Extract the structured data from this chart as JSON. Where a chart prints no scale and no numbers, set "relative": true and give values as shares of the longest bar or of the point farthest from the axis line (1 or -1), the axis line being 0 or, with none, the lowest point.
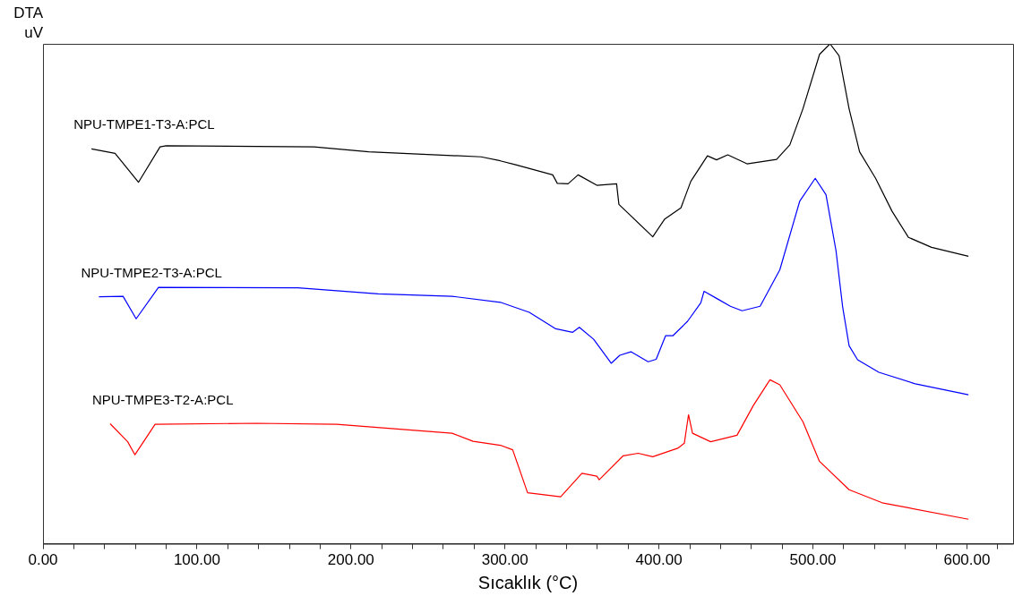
{
  "chart_data": {
    "type": "line",
    "xlabel": "Sıcaklık (°C)",
    "ylabel": "DTA\nuV",
    "relative": true,
    "legend": false,
    "marker": "none",
    "line_style": "solid",
    "xlim": [
      0,
      630
    ],
    "xticks": [
      {
        "value": 0,
        "label": "0.00"
      },
      {
        "value": 20,
        "label": null
      },
      {
        "value": 40,
        "label": null
      },
      {
        "value": 60,
        "label": null
      },
      {
        "value": 80,
        "label": null
      },
      {
        "value": 100,
        "label": "100.00"
      },
      {
        "value": 120,
        "label": null
      },
      {
        "value": 140,
        "label": null
      },
      {
        "value": 160,
        "label": null
      },
      {
        "value": 180,
        "label": null
      },
      {
        "value": 200,
        "label": "200.00"
      },
      {
        "value": 220,
        "label": null
      },
      {
        "value": 240,
        "label": null
      },
      {
        "value": 260,
        "label": null
      },
      {
        "value": 280,
        "label": null
      },
      {
        "value": 300,
        "label": "300.00"
      },
      {
        "value": 320,
        "label": null
      },
      {
        "value": 340,
        "label": null
      },
      {
        "value": 360,
        "label": null
      },
      {
        "value": 380,
        "label": null
      },
      {
        "value": 400,
        "label": "400.00"
      },
      {
        "value": 420,
        "label": null
      },
      {
        "value": 440,
        "label": null
      },
      {
        "value": 460,
        "label": null
      },
      {
        "value": 480,
        "label": null
      },
      {
        "value": 500,
        "label": "500.00"
      },
      {
        "value": 520,
        "label": null
      },
      {
        "value": 540,
        "label": null
      },
      {
        "value": 560,
        "label": null
      },
      {
        "value": 580,
        "label": null
      },
      {
        "value": 600,
        "label": "600.00"
      },
      {
        "value": 620,
        "label": null
      }
    ],
    "series": [
      {
        "name": "NPU-TMPE1-T3-A:PCL",
        "color": "#000000",
        "x": [
          31.5,
          46.8,
          62,
          76,
          80,
          176,
          211.5,
          284.5,
          297,
          307,
          331,
          334,
          341,
          347.5,
          359.7,
          372.5,
          374,
          396,
          403.6,
          414.3,
          420.7,
          431.5,
          437.4,
          444.7,
          457.2,
          476.4,
          485,
          493.5,
          504.3,
          511.1,
          517,
          523.5,
          530.3,
          540.7,
          551.4,
          562,
          577,
          601
        ],
        "values": [
          0.79,
          0.781,
          0.723,
          0.794,
          0.796,
          0.794,
          0.784,
          0.774,
          0.766,
          0.758,
          0.738,
          0.721,
          0.72,
          0.738,
          0.717,
          0.72,
          0.679,
          0.614,
          0.649,
          0.672,
          0.725,
          0.776,
          0.768,
          0.778,
          0.76,
          0.769,
          0.798,
          0.87,
          0.979,
          1.0,
          0.976,
          0.87,
          0.784,
          0.731,
          0.665,
          0.613,
          0.593,
          0.575
        ]
      },
      {
        "name": "NPU-TMPE2-T3-A:PCL",
        "color": "#0000ff",
        "x": [
          36.3,
          52,
          60.5,
          75,
          165.6,
          217.7,
          265.7,
          297,
          315.8,
          333,
          344,
          348.3,
          357.6,
          369,
          374.6,
          381.8,
          393,
          398.2,
          404.3,
          409,
          418.6,
          427.2,
          429.3,
          437.9,
          446.4,
          454,
          465.7,
          478.5,
          491.4,
          501.5,
          508.5,
          515,
          519.3,
          523.5,
          529,
          542.8,
          566.4,
          601
        ],
        "values": [
          0.494,
          0.495,
          0.45,
          0.513,
          0.512,
          0.5,
          0.495,
          0.483,
          0.463,
          0.43,
          0.423,
          0.433,
          0.409,
          0.361,
          0.377,
          0.384,
          0.364,
          0.369,
          0.416,
          0.416,
          0.445,
          0.482,
          0.505,
          0.49,
          0.475,
          0.466,
          0.475,
          0.548,
          0.685,
          0.731,
          0.698,
          0.586,
          0.474,
          0.396,
          0.368,
          0.343,
          0.32,
          0.298
        ]
      },
      {
        "name": "NPU-TMPE3-T2-A:PCL",
        "color": "#ff0000",
        "x": [
          43.6,
          55,
          59.7,
          72.8,
          138.5,
          190.7,
          265.7,
          279.3,
          297,
          305,
          314.7,
          336.2,
          350,
          359.7,
          361.2,
          376.8,
          386.5,
          396,
          412.2,
          416.5,
          419.2,
          421.8,
          433.6,
          450.7,
          461.4,
          472.1,
          478.5,
          493.5,
          504.2,
          523.5,
          544.9,
          601
        ],
        "values": [
          0.24,
          0.204,
          0.178,
          0.239,
          0.241,
          0.239,
          0.221,
          0.205,
          0.197,
          0.188,
          0.102,
          0.094,
          0.141,
          0.135,
          0.128,
          0.176,
          0.181,
          0.174,
          0.191,
          0.201,
          0.258,
          0.221,
          0.204,
          0.217,
          0.277,
          0.328,
          0.318,
          0.244,
          0.165,
          0.108,
          0.082,
          0.049
        ]
      }
    ]
  }
}
